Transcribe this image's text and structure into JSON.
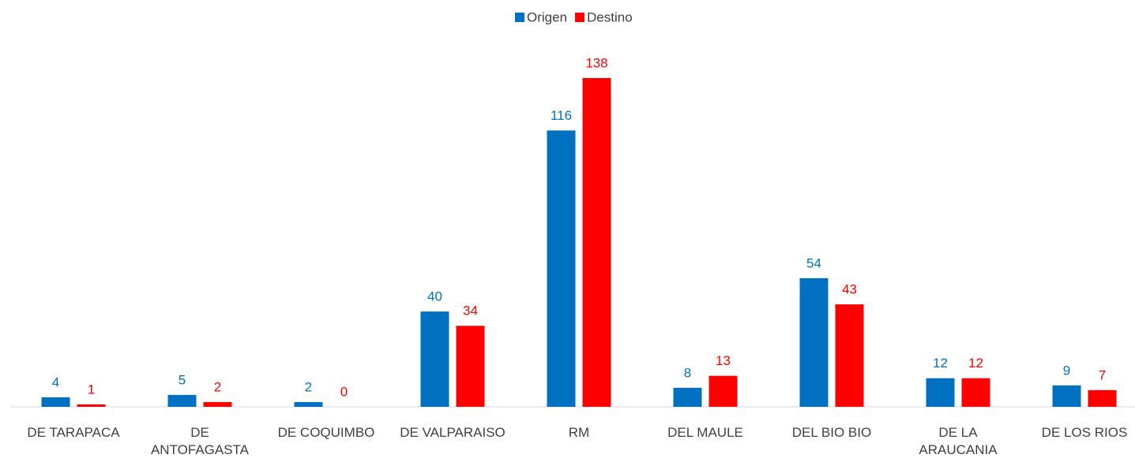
{
  "chart_data": {
    "type": "bar",
    "categories": [
      "DE TARAPACA",
      "DE ANTOFAGASTA",
      "DE COQUIMBO",
      "DE VALPARAISO",
      "RM",
      "DEL MAULE",
      "DEL BIO BIO",
      "DE LA ARAUCANIA",
      "DE LOS RIOS"
    ],
    "series": [
      {
        "name": "Origen",
        "color": "#0070c0",
        "values": [
          4,
          5,
          2,
          40,
          116,
          8,
          54,
          12,
          9
        ]
      },
      {
        "name": "Destino",
        "color": "#ff0000",
        "values": [
          1,
          2,
          0,
          34,
          138,
          13,
          43,
          12,
          7
        ]
      }
    ],
    "legend": "top"
  }
}
